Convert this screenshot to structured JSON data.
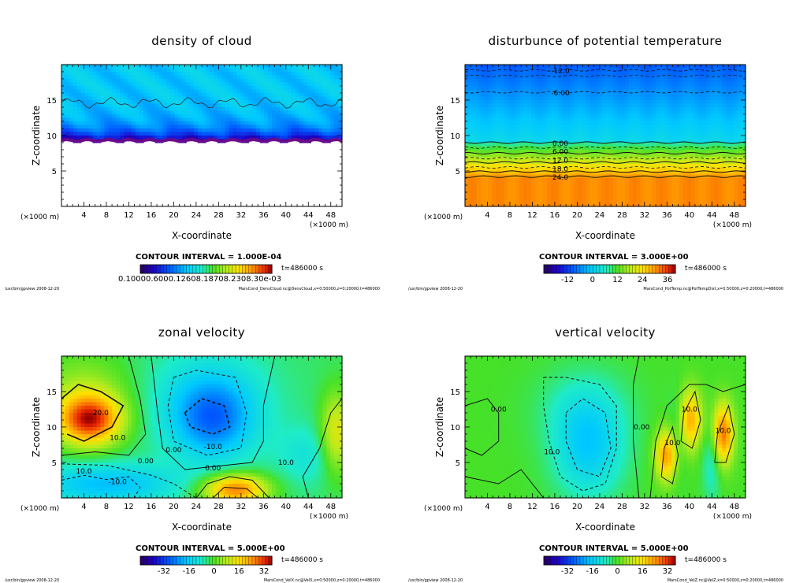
{
  "chart_data": [
    {
      "type": "heatmap",
      "title": "density of cloud",
      "xlabel": "X-coordinate",
      "ylabel": "Z-coordinate",
      "xunit_left": "(×1000 m)",
      "xunit_right": "(×1000 m)",
      "xticks": [
        4,
        8,
        12,
        16,
        20,
        24,
        28,
        32,
        36,
        40,
        44,
        48
      ],
      "yticks": [
        5,
        10,
        15
      ],
      "xlim": [
        0,
        50
      ],
      "ylim": [
        0,
        20
      ],
      "contour_interval": "CONTOUR INTERVAL = 1.000E-04",
      "time": "t=486000 s",
      "colorbar_label": "0.10000.6000.12608.18708.2308.30e-03",
      "contour_labels": [],
      "footer_left": "/usr/bin/gpview   2008-12-20",
      "footer_right": "MarsCond_DensCloud.nc@DensCloud,x=0:50000,z=0:20000,t=486000"
    },
    {
      "type": "heatmap",
      "title": "disturbunce of potential temperature",
      "xlabel": "X-coordinate",
      "ylabel": "Z-coordinate",
      "xunit_left": "(×1000 m)",
      "xunit_right": "(×1000 m)",
      "xticks": [
        4,
        8,
        12,
        16,
        20,
        24,
        28,
        32,
        36,
        40,
        44,
        48
      ],
      "yticks": [
        5,
        10,
        15
      ],
      "xlim": [
        0,
        50
      ],
      "ylim": [
        0,
        20
      ],
      "contour_interval": "CONTOUR INTERVAL = 3.000E+00",
      "time": "t=486000 s",
      "colorbar_ticks": [
        "-12",
        "0",
        "12",
        "24",
        "36"
      ],
      "contour_labels": [
        "-12.0",
        "-6.00",
        "0.00",
        "6.00",
        "12.0",
        "18.0",
        "24.0"
      ],
      "footer_left": "/usr/bin/gpview   2008-12-20",
      "footer_right": "MarsCond_PotTemp.nc@PotTempDist,x=0:50000,z=0:20000,t=486000"
    },
    {
      "type": "heatmap",
      "title": "zonal velocity",
      "xlabel": "X-coordinate",
      "ylabel": "Z-coordinate",
      "xunit_left": "(×1000 m)",
      "xunit_right": "(×1000 m)",
      "xticks": [
        4,
        8,
        12,
        16,
        20,
        24,
        28,
        32,
        36,
        40,
        44,
        48
      ],
      "yticks": [
        5,
        10,
        15
      ],
      "xlim": [
        0,
        50
      ],
      "ylim": [
        0,
        20
      ],
      "contour_interval": "CONTOUR INTERVAL = 5.000E+00",
      "time": "t=486000 s",
      "colorbar_ticks": [
        "-32",
        "-16",
        "0",
        "16",
        "32"
      ],
      "contour_labels": [
        "20.0",
        "10.0",
        "0.00",
        "0.00",
        "-10.0",
        "10.0",
        "-10.0",
        "0.00",
        "10.0"
      ],
      "footer_left": "/usr/bin/gpview   2008-12-20",
      "footer_right": "MarsCond_VelX.nc@VelX,x=0:50000,z=0:20000,t=486000"
    },
    {
      "type": "heatmap",
      "title": "vertical velocity",
      "xlabel": "X-coordinate",
      "ylabel": "Z-coordinate",
      "xunit_left": "(×1000 m)",
      "xunit_right": "(×1000 m)",
      "xticks": [
        4,
        8,
        12,
        16,
        20,
        24,
        28,
        32,
        36,
        40,
        44,
        48
      ],
      "yticks": [
        5,
        10,
        15
      ],
      "xlim": [
        0,
        50
      ],
      "ylim": [
        0,
        20
      ],
      "contour_interval": "CONTOUR INTERVAL = 5.000E+00",
      "time": "t=486000 s",
      "colorbar_ticks": [
        "-32",
        "-16",
        "0",
        "16",
        "32"
      ],
      "contour_labels": [
        "0.00",
        "10.0",
        "0.00",
        "10.0",
        "10.0",
        "10.0"
      ],
      "footer_left": "/usr/bin/gpview   2008-12-20",
      "footer_right": "MarsCond_VelZ.nc@VelZ,x=0:50000,z=0:20000,t=486000"
    }
  ]
}
